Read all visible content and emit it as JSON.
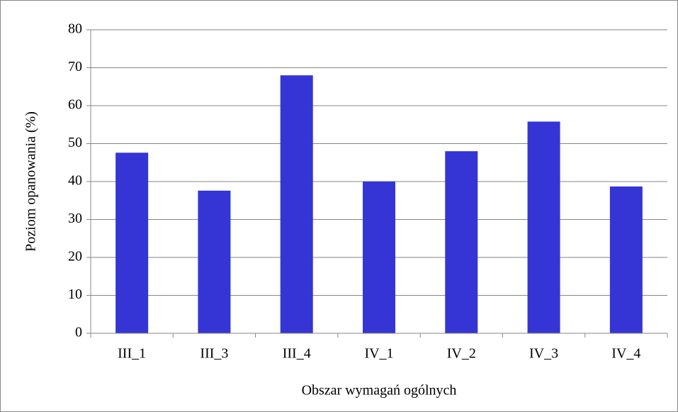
{
  "chart_data": {
    "type": "bar",
    "x_label": "Obszar wymagań ogólnych",
    "y_label": "Poziom opanowania (%)",
    "categories": [
      "III_1",
      "III_3",
      "III_4",
      "IV_1",
      "IV_2",
      "IV_3",
      "IV_4"
    ],
    "values": [
      47.6,
      37.6,
      68,
      40,
      48,
      55.8,
      38.7
    ],
    "color": "#3535d5",
    "ylim": [
      0,
      80
    ],
    "yticks": [
      0,
      10,
      20,
      30,
      40,
      50,
      60,
      70,
      80
    ],
    "grid": true
  }
}
